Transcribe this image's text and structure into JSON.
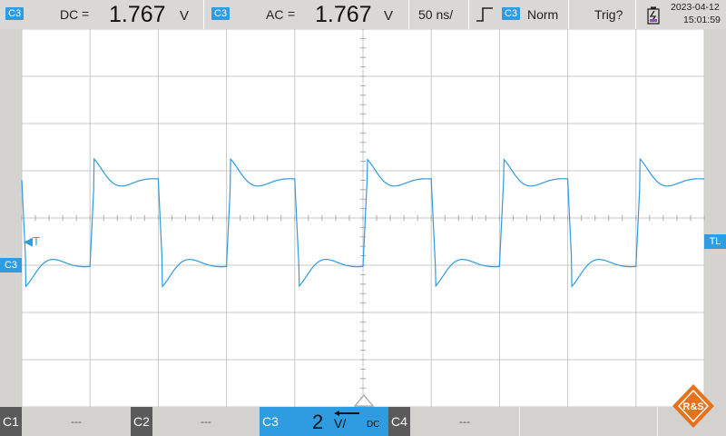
{
  "colors": {
    "trace": "#2f9be0",
    "grid": "#c8c8c8",
    "panel": "#dad8d4",
    "channel_active": "#2f9be0",
    "channel_inactive": "#5a5a5a",
    "logo": "#e8721c"
  },
  "measure1": {
    "channel": "C3",
    "type": "DC",
    "eq": "=",
    "value": "1.767",
    "unit": "V"
  },
  "measure2": {
    "channel": "C3",
    "type": "AC",
    "eq": "=",
    "value": "1.767",
    "unit": "V"
  },
  "timebase": "50 ns/",
  "trigger": {
    "edge_icon": "rising-edge-icon",
    "channel": "C3",
    "mode": "Norm",
    "status": "Trig?"
  },
  "battery_icon": "battery-charging-icon",
  "datetime": {
    "date": "2023-04-12",
    "time": "15:01:59"
  },
  "markers": {
    "channel_ref": "C3",
    "trigger_level": "T",
    "trigger_level_right": "TL"
  },
  "channels": [
    {
      "name": "C1",
      "value": "---",
      "active": false
    },
    {
      "name": "C2",
      "value": "---",
      "active": false
    },
    {
      "name": "C3",
      "scale": "2",
      "unit": "V/",
      "coupling": "DC",
      "active": true
    },
    {
      "name": "C4",
      "value": "---",
      "active": false
    }
  ],
  "logo_text": "R&S",
  "chart_data": {
    "type": "line",
    "title": "",
    "xlabel": "",
    "ylabel": "",
    "x_units": "divisions",
    "y_units": "divisions",
    "xlim": [
      0,
      10
    ],
    "ylim": [
      -4,
      4
    ],
    "grid": true,
    "series": [
      {
        "name": "C3",
        "period_div": 2.0,
        "rise_div": [
          1.0,
          3.0,
          5.0,
          7.0,
          9.0
        ],
        "fall_div": [
          2.0,
          4.0,
          6.0,
          8.0,
          10.0
        ],
        "high_level_div": 0.8,
        "low_level_div": -1.0,
        "overshoot_peak_div": 1.2,
        "undershoot_peak_div": -1.45
      }
    ]
  }
}
